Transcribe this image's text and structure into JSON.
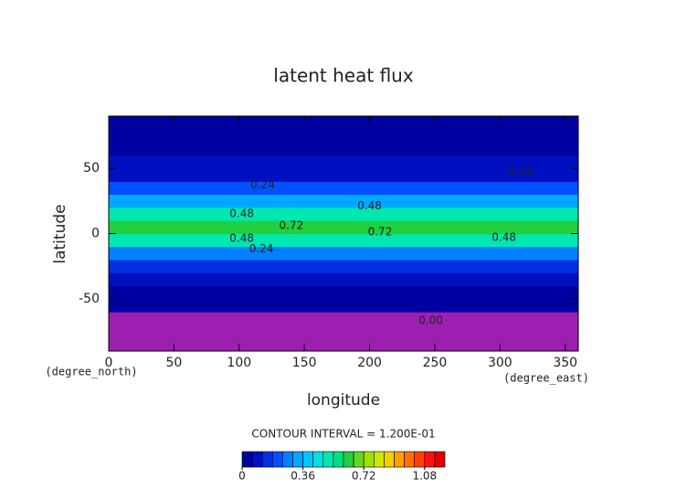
{
  "chart_data": {
    "type": "contour",
    "title": "latent heat flux",
    "x_label": "longitude",
    "y_label": "latitude",
    "x_units": "(degree_east)",
    "y_units": "(degree_north)",
    "xlim": [
      0,
      360
    ],
    "ylim": [
      -90,
      90
    ],
    "xticks": [
      0,
      50,
      100,
      150,
      200,
      250,
      300,
      350
    ],
    "yticks": [
      -50,
      0,
      50
    ],
    "lat": [
      -85,
      -75,
      -65,
      -55,
      -45,
      -35,
      -25,
      -15,
      -5,
      5,
      15,
      25,
      35,
      45,
      55,
      65,
      75,
      85
    ],
    "values": [
      null,
      null,
      null,
      0.02,
      0.04,
      0.06,
      0.12,
      0.26,
      0.5,
      0.62,
      0.5,
      0.32,
      0.2,
      0.1,
      0.06,
      0.05,
      0.04,
      0.03
    ],
    "missing_color": "#9c1fb0",
    "annotations": [
      {
        "text": "0.24",
        "x": 118,
        "y": 37
      },
      {
        "text": "0.48",
        "x": 102,
        "y": 15
      },
      {
        "text": "0.72",
        "x": 140,
        "y": 6
      },
      {
        "text": "0.48",
        "x": 102,
        "y": -4
      },
      {
        "text": "0.24",
        "x": 117,
        "y": -12
      },
      {
        "text": "0.48",
        "x": 200,
        "y": 21
      },
      {
        "text": "0.72",
        "x": 208,
        "y": 1
      },
      {
        "text": "0.48",
        "x": 303,
        "y": -3
      },
      {
        "text": "0.24",
        "x": 316,
        "y": 47
      },
      {
        "text": "0.00",
        "x": 247,
        "y": -67
      }
    ],
    "contour_interval": "CONTOUR INTERVAL = 1.200E-01",
    "colorbar_lim": [
      0,
      1.2
    ],
    "colorbar_ticks": [
      0,
      0.36,
      0.72,
      1.08
    ],
    "colormap": [
      "#0000a0",
      "#0010c0",
      "#0030e0",
      "#0050ff",
      "#0080ff",
      "#00a8ff",
      "#00c8ff",
      "#00e0e0",
      "#00e8b0",
      "#00e080",
      "#20d040",
      "#60d820",
      "#a0e000",
      "#d0e800",
      "#f0d000",
      "#ffa000",
      "#ff7000",
      "#ff4000",
      "#ff1010",
      "#e00000"
    ]
  }
}
